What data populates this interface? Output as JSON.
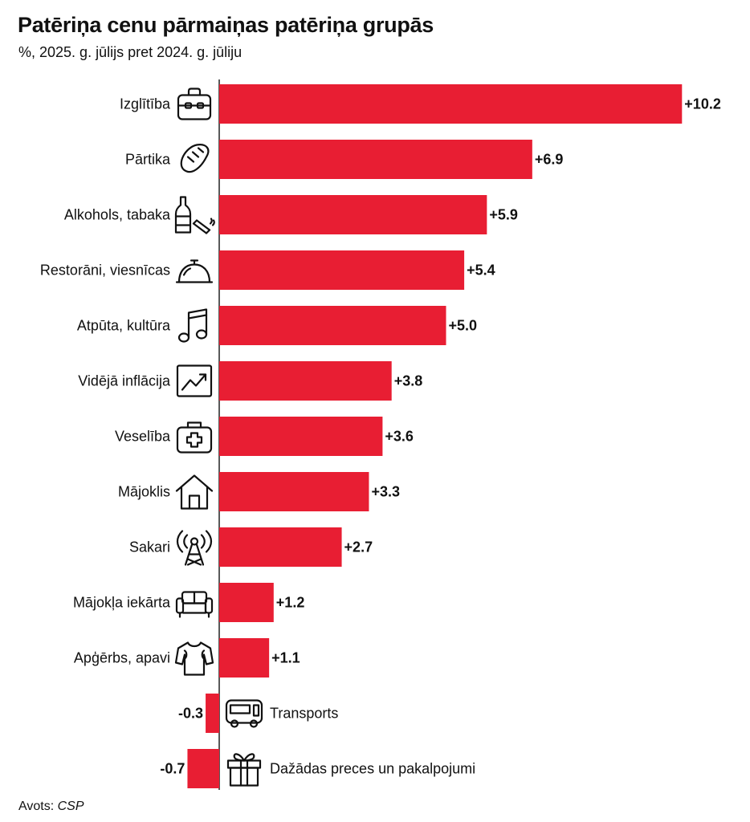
{
  "header": {
    "title": "Patēriņa cenu pārmaiņas patēriņa grupās",
    "subtitle": "%, 2025. g. jūlijs pret 2024. g. jūliju"
  },
  "footer": {
    "source_label": "Avots:",
    "source_name": "CSP"
  },
  "chart_data": {
    "type": "bar",
    "orientation": "horizontal",
    "title": "Patēriņa cenu pārmaiņas patēriņa grupās",
    "subtitle": "%, 2025. g. jūlijs pret 2024. g. jūliju",
    "categories": [
      "Izglītība",
      "Pārtika",
      "Alkohols, tabaka",
      "Restorāni, viesnīcas",
      "Atpūta, kultūra",
      "Vidējā inflācija",
      "Veselība",
      "Mājoklis",
      "Sakari",
      "Mājokļa iekārta",
      "Apģērbs, apavi",
      "Transports",
      "Dažādas preces un pakalpojumi"
    ],
    "values": [
      10.2,
      6.9,
      5.9,
      5.4,
      5.0,
      3.8,
      3.6,
      3.3,
      2.7,
      1.2,
      1.1,
      -0.3,
      -0.7
    ],
    "value_labels": [
      "+10.2",
      "+6.9",
      "+5.9",
      "+5.4",
      "+5.0",
      "+3.8",
      "+3.6",
      "+3.3",
      "+2.7",
      "+1.2",
      "+1.1",
      "-0.3",
      "-0.7"
    ],
    "icons": [
      "briefcase-icon",
      "bread-icon",
      "bottle-cigarette-icon",
      "cloche-icon",
      "music-note-icon",
      "trend-chart-icon",
      "first-aid-kit-icon",
      "house-icon",
      "antenna-icon",
      "sofa-icon",
      "shirt-icon",
      "bus-icon",
      "gift-icon"
    ],
    "bar_color": "#e81e33",
    "axis_color": "#222222",
    "grid": false,
    "legend": "none"
  }
}
